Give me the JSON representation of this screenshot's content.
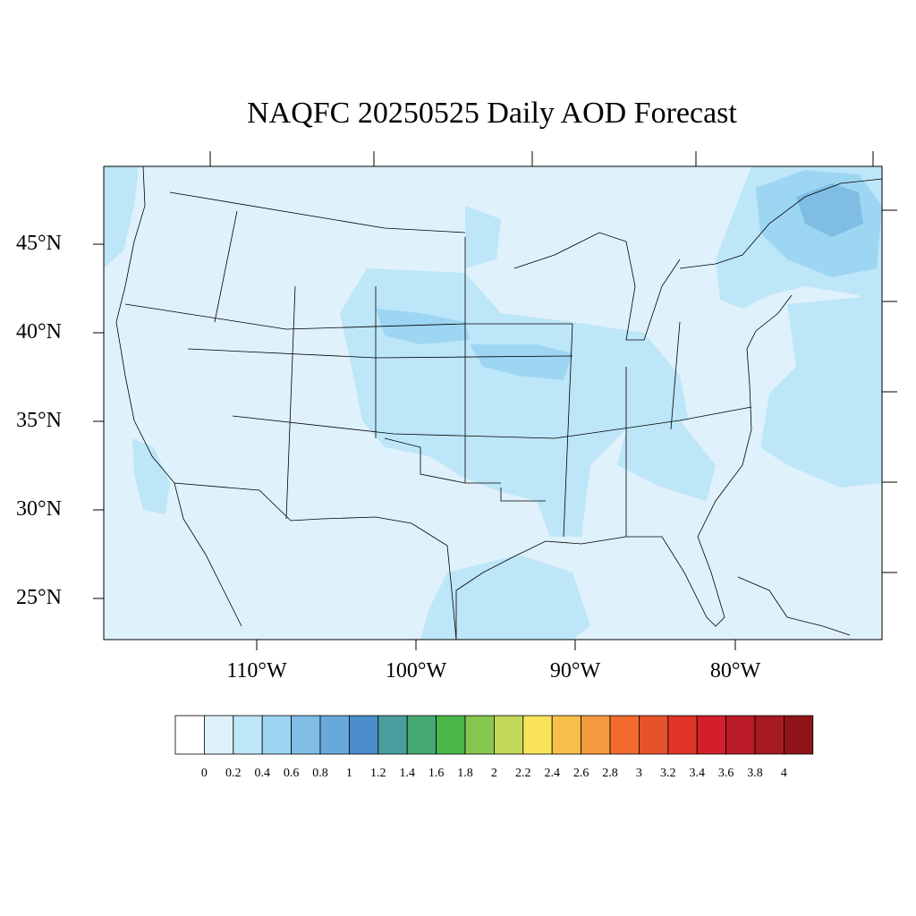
{
  "title": "NAQFC 20250525 Daily AOD Forecast",
  "lat_labels": [
    "45°N",
    "40°N",
    "35°N",
    "30°N",
    "25°N"
  ],
  "lon_labels": [
    "110°W",
    "100°W",
    "90°W",
    "80°W"
  ],
  "colorbar": {
    "labels": [
      "0",
      "0.2",
      "0.4",
      "0.6",
      "0.8",
      "1",
      "1.2",
      "1.4",
      "1.6",
      "1.8",
      "2",
      "2.2",
      "2.4",
      "2.6",
      "2.8",
      "3",
      "3.2",
      "3.4",
      "3.6",
      "3.8",
      "4"
    ],
    "colors": [
      "#ffffff",
      "#dff1fb",
      "#bde6f8",
      "#9dd6f2",
      "#7fbde5",
      "#68a9dc",
      "#4b8ecb",
      "#4a9e9e",
      "#46a874",
      "#4ab648",
      "#86c54e",
      "#c2d657",
      "#f8e35a",
      "#f8c04b",
      "#f59a3e",
      "#f06b2d",
      "#e7512b",
      "#e03427",
      "#d21f2b",
      "#bb1a27",
      "#a61a22",
      "#8f1519"
    ]
  }
}
